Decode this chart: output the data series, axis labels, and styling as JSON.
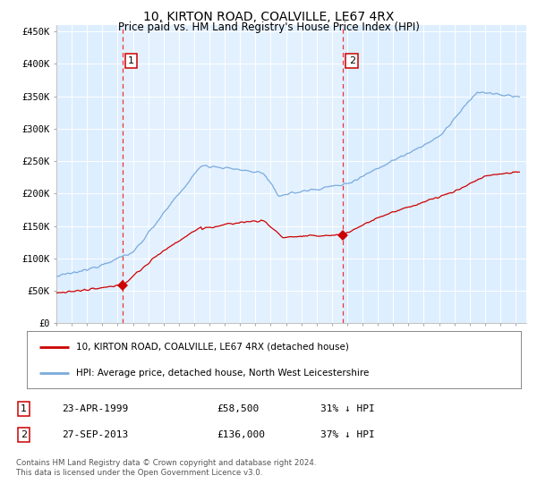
{
  "title": "10, KIRTON ROAD, COALVILLE, LE67 4RX",
  "subtitle": "Price paid vs. HM Land Registry's House Price Index (HPI)",
  "title_fontsize": 10,
  "subtitle_fontsize": 8.5,
  "background_color": "#ffffff",
  "plot_bg_color": "#ddeeff",
  "grid_color": "#ffffff",
  "red_line_color": "#cc0000",
  "blue_line_color": "#7aaadd",
  "marker1_date_num": 1999.31,
  "marker1_price": 58500,
  "marker2_date_num": 2013.74,
  "marker2_price": 136000,
  "vline_color": "#ee3333",
  "annotation_box_color": "#cc0000",
  "ylim": [
    0,
    460000
  ],
  "xlim_start": 1995.0,
  "xlim_end": 2025.7,
  "legend_label_red": "10, KIRTON ROAD, COALVILLE, LE67 4RX (detached house)",
  "legend_label_blue": "HPI: Average price, detached house, North West Leicestershire",
  "table_row1": [
    "1",
    "23-APR-1999",
    "£58,500",
    "31% ↓ HPI"
  ],
  "table_row2": [
    "2",
    "27-SEP-2013",
    "£136,000",
    "37% ↓ HPI"
  ],
  "footer_text": "Contains HM Land Registry data © Crown copyright and database right 2024.\nThis data is licensed under the Open Government Licence v3.0.",
  "ytick_labels": [
    "£0",
    "£50K",
    "£100K",
    "£150K",
    "£200K",
    "£250K",
    "£300K",
    "£350K",
    "£400K",
    "£450K"
  ],
  "ytick_values": [
    0,
    50000,
    100000,
    150000,
    200000,
    250000,
    300000,
    350000,
    400000,
    450000
  ]
}
